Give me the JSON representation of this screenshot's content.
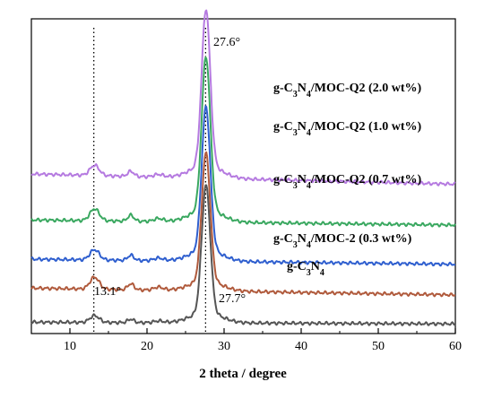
{
  "chart_data": {
    "type": "line",
    "xlabel": "2 theta / degree",
    "ylabel": "",
    "xlim": [
      5,
      60
    ],
    "x_ticks": [
      10,
      20,
      30,
      40,
      50,
      60
    ],
    "y_ticks_shown": false,
    "grid": false,
    "reference_lines_x": [
      13.1,
      27.6
    ],
    "peak_annotations": [
      {
        "text": "27.6°",
        "x": 27.6,
        "series": "g-C3N4/MOC-Q2 (2.0 wt%)"
      },
      {
        "text": "13.1°",
        "x": 13.1,
        "series": "g-C3N4"
      },
      {
        "text": "27.7°",
        "x": 27.7,
        "series": "g-C3N4"
      }
    ],
    "series": [
      {
        "name": "g-C3N4",
        "label_prefix": "g-C",
        "label_middle": "N",
        "label_suffix": "",
        "sub1": "3",
        "sub2": "4",
        "color": "#555555",
        "baseline": 0.03,
        "shoulder": 0.07,
        "peak": 0.78,
        "tail": 0.02
      },
      {
        "name": "g-C3N4/MOC-2 (0.3 wt%)",
        "label_prefix": "g-C",
        "label_middle": "N",
        "label_suffix": "/MOC-2 (0.3 wt%)",
        "sub1": "3",
        "sub2": "4",
        "color": "#b05a3c",
        "baseline": 0.23,
        "shoulder": 0.3,
        "peak": 0.98,
        "tail": 0.19
      },
      {
        "name": "g-C3N4/MOC-Q2 (0.7 wt%)",
        "label_prefix": "g-C",
        "label_middle": "N",
        "label_suffix": "/MOC-Q2 (0.7 wt%)",
        "sub1": "3",
        "sub2": "4",
        "color": "#2f5fcf",
        "baseline": 0.4,
        "shoulder": 0.46,
        "peak": 1.24,
        "tail": 0.37
      },
      {
        "name": "g-C3N4/MOC-Q2 (1.0 wt%)",
        "label_prefix": "g-C",
        "label_middle": "N",
        "label_suffix": "/MOC-Q2 (1.0 wt%)",
        "sub1": "3",
        "sub2": "4",
        "color": "#3aa860",
        "baseline": 0.63,
        "shoulder": 0.7,
        "peak": 1.53,
        "tail": 0.6
      },
      {
        "name": "g-C3N4/MOC-Q2 (2.0 wt%)",
        "label_prefix": "g-C",
        "label_middle": "N",
        "label_suffix": "/MOC-Q2 (2.0 wt%)",
        "sub1": "3",
        "sub2": "4",
        "color": "#b57ae0",
        "baseline": 0.9,
        "shoulder": 0.96,
        "peak": 1.82,
        "tail": 0.84
      }
    ]
  }
}
